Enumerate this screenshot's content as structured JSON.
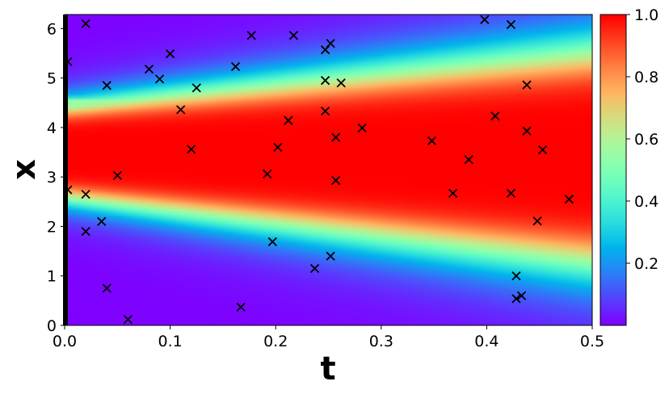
{
  "chart_data": {
    "type": "heatmap",
    "title": "",
    "xlabel": "t",
    "ylabel": "x",
    "xlim": [
      0,
      0.5
    ],
    "ylim": [
      0,
      6.283
    ],
    "x_ticks": [
      {
        "value": 0.0,
        "label": "0.0"
      },
      {
        "value": 0.1,
        "label": "0.1"
      },
      {
        "value": 0.2,
        "label": "0.2"
      },
      {
        "value": 0.3,
        "label": "0.3"
      },
      {
        "value": 0.4,
        "label": "0.4"
      },
      {
        "value": 0.5,
        "label": "0.5"
      }
    ],
    "y_ticks": [
      {
        "value": 0,
        "label": "0"
      },
      {
        "value": 1,
        "label": "1"
      },
      {
        "value": 2,
        "label": "2"
      },
      {
        "value": 3,
        "label": "3"
      },
      {
        "value": 4,
        "label": "4"
      },
      {
        "value": 5,
        "label": "5"
      },
      {
        "value": 6,
        "label": "6"
      }
    ],
    "colorbar": {
      "colormap": "rainbow",
      "range": [
        0,
        1
      ],
      "ticks": [
        {
          "value": 0.2,
          "label": "0.2"
        },
        {
          "value": 0.4,
          "label": "0.4"
        },
        {
          "value": 0.6,
          "label": "0.6"
        },
        {
          "value": 0.8,
          "label": "0.8"
        },
        {
          "value": 1.0,
          "label": "1.0"
        }
      ]
    },
    "field_bands": [
      {
        "x_center_start": 3.5,
        "x_center_end": 3.4,
        "half_width_start": 0.95,
        "half_width_end": 2.2,
        "amplitude": 1.0
      },
      {
        "x_center_start": 4.5,
        "x_center_end": 4.5,
        "half_width_start": 0.12,
        "half_width_end": 0.2,
        "amplitude": 0.55
      }
    ],
    "sample_points_style": {
      "marker": "x",
      "color": "#000000"
    },
    "sample_points": [
      {
        "t": 0.003,
        "x": 5.33
      },
      {
        "t": 0.003,
        "x": 2.74
      },
      {
        "t": 0.02,
        "x": 6.1
      },
      {
        "t": 0.02,
        "x": 2.65
      },
      {
        "t": 0.02,
        "x": 1.9
      },
      {
        "t": 0.035,
        "x": 2.1
      },
      {
        "t": 0.04,
        "x": 4.85
      },
      {
        "t": 0.04,
        "x": 0.75
      },
      {
        "t": 0.05,
        "x": 3.03
      },
      {
        "t": 0.06,
        "x": 0.12
      },
      {
        "t": 0.08,
        "x": 5.18
      },
      {
        "t": 0.09,
        "x": 4.98
      },
      {
        "t": 0.1,
        "x": 5.49
      },
      {
        "t": 0.11,
        "x": 4.36
      },
      {
        "t": 0.12,
        "x": 3.56
      },
      {
        "t": 0.125,
        "x": 4.8
      },
      {
        "t": 0.162,
        "x": 5.23
      },
      {
        "t": 0.167,
        "x": 0.37
      },
      {
        "t": 0.177,
        "x": 5.86
      },
      {
        "t": 0.192,
        "x": 3.06
      },
      {
        "t": 0.197,
        "x": 1.69
      },
      {
        "t": 0.202,
        "x": 3.6
      },
      {
        "t": 0.212,
        "x": 4.14
      },
      {
        "t": 0.217,
        "x": 5.86
      },
      {
        "t": 0.237,
        "x": 1.15
      },
      {
        "t": 0.247,
        "x": 5.57
      },
      {
        "t": 0.247,
        "x": 4.95
      },
      {
        "t": 0.247,
        "x": 4.33
      },
      {
        "t": 0.252,
        "x": 5.7
      },
      {
        "t": 0.252,
        "x": 1.4
      },
      {
        "t": 0.257,
        "x": 3.8
      },
      {
        "t": 0.257,
        "x": 2.93
      },
      {
        "t": 0.262,
        "x": 4.9
      },
      {
        "t": 0.282,
        "x": 3.99
      },
      {
        "t": 0.348,
        "x": 3.73
      },
      {
        "t": 0.368,
        "x": 2.67
      },
      {
        "t": 0.383,
        "x": 3.35
      },
      {
        "t": 0.398,
        "x": 6.18
      },
      {
        "t": 0.408,
        "x": 4.23
      },
      {
        "t": 0.423,
        "x": 6.08
      },
      {
        "t": 0.423,
        "x": 2.67
      },
      {
        "t": 0.428,
        "x": 1.0
      },
      {
        "t": 0.428,
        "x": 0.54
      },
      {
        "t": 0.433,
        "x": 0.6
      },
      {
        "t": 0.438,
        "x": 4.86
      },
      {
        "t": 0.438,
        "x": 3.93
      },
      {
        "t": 0.448,
        "x": 2.11
      },
      {
        "t": 0.453,
        "x": 3.55
      },
      {
        "t": 0.478,
        "x": 2.55
      }
    ]
  }
}
